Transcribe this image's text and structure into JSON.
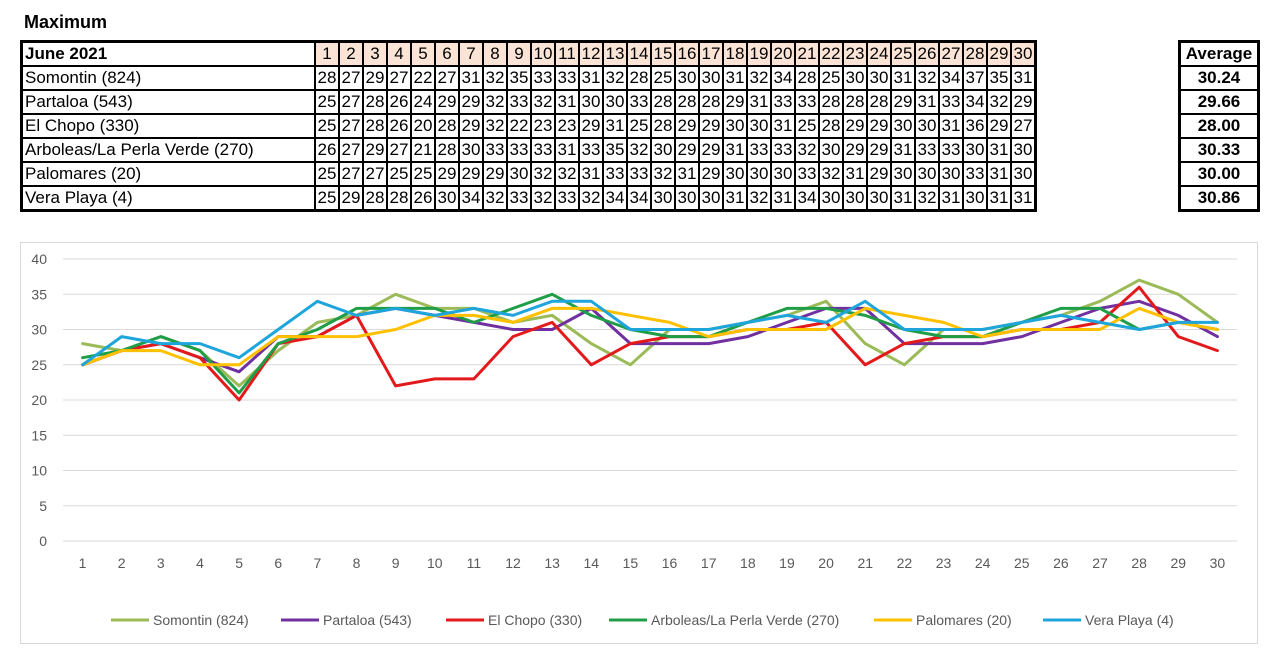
{
  "title": "Maximum",
  "table": {
    "corner": "June 2021",
    "average_header": "Average",
    "days": [
      "1",
      "2",
      "3",
      "4",
      "5",
      "6",
      "7",
      "8",
      "9",
      "10",
      "11",
      "12",
      "13",
      "14",
      "15",
      "16",
      "17",
      "18",
      "19",
      "20",
      "21",
      "22",
      "23",
      "24",
      "25",
      "26",
      "27",
      "28",
      "29",
      "30"
    ],
    "rows": [
      {
        "name": "Somontin (824)",
        "values": [
          28,
          27,
          29,
          27,
          22,
          27,
          31,
          32,
          35,
          33,
          33,
          31,
          32,
          28,
          25,
          30,
          30,
          31,
          32,
          34,
          28,
          25,
          30,
          30,
          31,
          32,
          34,
          37,
          35,
          31
        ],
        "average": "30.24"
      },
      {
        "name": "Partaloa (543)",
        "values": [
          25,
          27,
          28,
          26,
          24,
          29,
          29,
          32,
          33,
          32,
          31,
          30,
          30,
          33,
          28,
          28,
          28,
          29,
          31,
          33,
          33,
          28,
          28,
          28,
          29,
          31,
          33,
          34,
          32,
          29
        ],
        "average": "29.66"
      },
      {
        "name": "El Chopo (330)",
        "values": [
          25,
          27,
          28,
          26,
          20,
          28,
          29,
          32,
          22,
          23,
          23,
          29,
          31,
          25,
          28,
          29,
          29,
          30,
          30,
          31,
          25,
          28,
          29,
          29,
          30,
          30,
          31,
          36,
          29,
          27
        ],
        "average": "28.00"
      },
      {
        "name": "Arboleas/La Perla Verde (270)",
        "values": [
          26,
          27,
          29,
          27,
          21,
          28,
          30,
          33,
          33,
          33,
          31,
          33,
          35,
          32,
          30,
          29,
          29,
          31,
          33,
          33,
          32,
          30,
          29,
          29,
          31,
          33,
          33,
          30,
          31,
          30
        ],
        "average": "30.33"
      },
      {
        "name": "Palomares (20)",
        "values": [
          25,
          27,
          27,
          25,
          25,
          29,
          29,
          29,
          30,
          32,
          32,
          31,
          33,
          33,
          32,
          31,
          29,
          30,
          30,
          30,
          33,
          32,
          31,
          29,
          30,
          30,
          30,
          33,
          31,
          30
        ],
        "average": "30.00"
      },
      {
        "name": "Vera Playa (4)",
        "values": [
          25,
          29,
          28,
          28,
          26,
          30,
          34,
          32,
          33,
          32,
          33,
          32,
          34,
          34,
          30,
          30,
          30,
          31,
          32,
          31,
          34,
          30,
          30,
          30,
          31,
          32,
          31,
          30,
          31,
          31
        ],
        "average": "30.86"
      }
    ]
  },
  "chart_data": {
    "type": "line",
    "title": "",
    "xlabel": "",
    "ylabel": "",
    "x": [
      1,
      2,
      3,
      4,
      5,
      6,
      7,
      8,
      9,
      10,
      11,
      12,
      13,
      14,
      15,
      16,
      17,
      18,
      19,
      20,
      21,
      22,
      23,
      24,
      25,
      26,
      27,
      28,
      29,
      30
    ],
    "ylim": [
      0,
      40
    ],
    "yticks": [
      0,
      5,
      10,
      15,
      20,
      25,
      30,
      35,
      40
    ],
    "grid": true,
    "legend_position": "bottom",
    "series": [
      {
        "name": "Somontin (824)",
        "color": "#9bbb59",
        "values": [
          28,
          27,
          29,
          27,
          22,
          27,
          31,
          32,
          35,
          33,
          33,
          31,
          32,
          28,
          25,
          30,
          30,
          31,
          32,
          34,
          28,
          25,
          30,
          30,
          31,
          32,
          34,
          37,
          35,
          31
        ]
      },
      {
        "name": "Partaloa (543)",
        "color": "#7030a0",
        "values": [
          25,
          27,
          28,
          26,
          24,
          29,
          29,
          32,
          33,
          32,
          31,
          30,
          30,
          33,
          28,
          28,
          28,
          29,
          31,
          33,
          33,
          28,
          28,
          28,
          29,
          31,
          33,
          34,
          32,
          29
        ]
      },
      {
        "name": "El Chopo (330)",
        "color": "#e31a1c",
        "values": [
          25,
          27,
          28,
          26,
          20,
          28,
          29,
          32,
          22,
          23,
          23,
          29,
          31,
          25,
          28,
          29,
          29,
          30,
          30,
          31,
          25,
          28,
          29,
          29,
          30,
          30,
          31,
          36,
          29,
          27
        ]
      },
      {
        "name": "Arboleas/La Perla Verde (270)",
        "color": "#1f9e47",
        "values": [
          26,
          27,
          29,
          27,
          21,
          28,
          30,
          33,
          33,
          33,
          31,
          33,
          35,
          32,
          30,
          29,
          29,
          31,
          33,
          33,
          32,
          30,
          29,
          29,
          31,
          33,
          33,
          30,
          31,
          30
        ]
      },
      {
        "name": "Palomares (20)",
        "color": "#ffc000",
        "values": [
          25,
          27,
          27,
          25,
          25,
          29,
          29,
          29,
          30,
          32,
          32,
          31,
          33,
          33,
          32,
          31,
          29,
          30,
          30,
          30,
          33,
          32,
          31,
          29,
          30,
          30,
          30,
          33,
          31,
          30
        ]
      },
      {
        "name": "Vera Playa (4)",
        "color": "#1ea5dc",
        "values": [
          25,
          29,
          28,
          28,
          26,
          30,
          34,
          32,
          33,
          32,
          33,
          32,
          34,
          34,
          30,
          30,
          30,
          31,
          32,
          31,
          34,
          30,
          30,
          30,
          31,
          32,
          31,
          30,
          31,
          31
        ]
      }
    ]
  }
}
